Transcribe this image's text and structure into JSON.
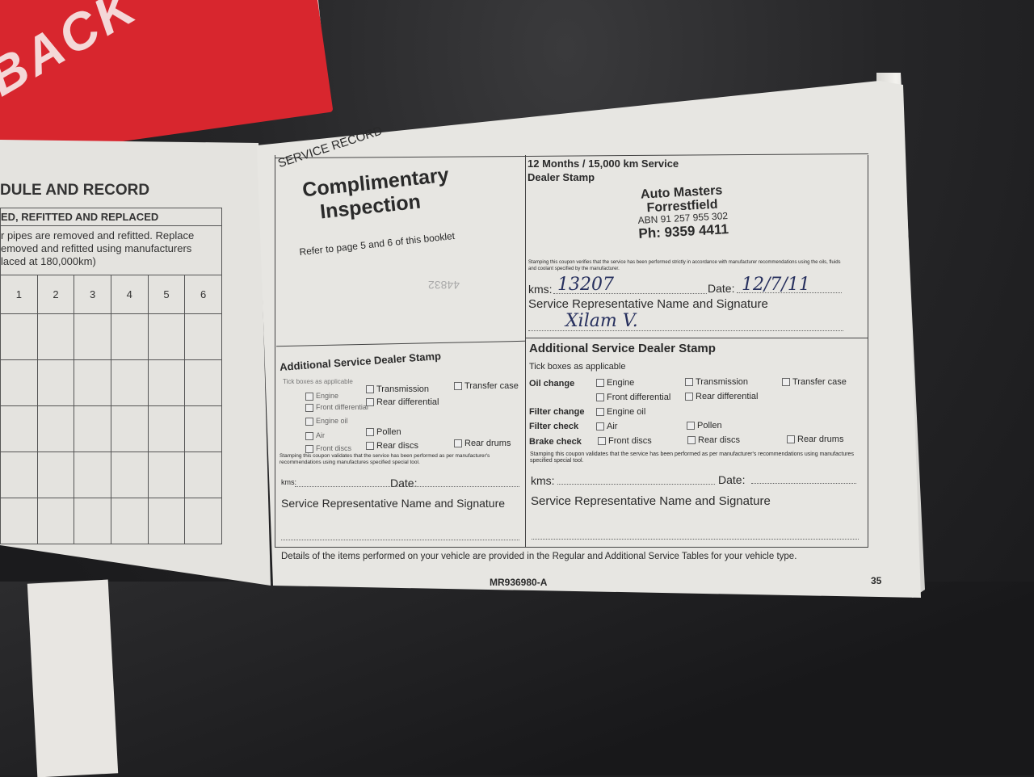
{
  "background_booklet": {
    "cover_text": "BACK"
  },
  "left_page": {
    "title": "DULE AND RECORD",
    "table_header": "ED, REFITTED AND REPLACED",
    "note_lines": [
      "r pipes are removed and refitted. Replace",
      "emoved and refitted using manufacturers",
      "laced at 180,000km)"
    ],
    "columns": [
      "1",
      "2",
      "3",
      "4",
      "5",
      "6"
    ]
  },
  "right_page": {
    "section_label": "SERVICE RECORD",
    "title_line1": "Complimentary",
    "title_line2": "Inspection",
    "refer_text": "Refer to page 5 and 6 of this booklet",
    "faint_handwriting": "44832",
    "service_box": {
      "heading": "12 Months / 15,000 km Service",
      "subheading": "Dealer Stamp",
      "stamp": {
        "name": "Auto Masters",
        "location": "Forrestfield",
        "abn": "ABN 91 257 955 302",
        "phone": "Ph:  9359 4411"
      },
      "verify_note": "Stamping this coupon verifies that the service has been performed strictly in accordance with manufacturer recommendations using the oils, fluids and coolant specified by the manufacturer.",
      "kms_label": "kms:",
      "kms_value": "13207",
      "date_label": "Date:",
      "date_value": "12/7/11",
      "signature_label": "Service Representative Name and Signature",
      "signature_value": "Xilam V."
    },
    "additional_stamp": {
      "heading": "Additional Service Dealer Stamp",
      "tick_note": "Tick boxes as applicable",
      "rows": [
        {
          "label": "Oil change",
          "items": [
            "Engine",
            "Transmission",
            "Transfer case"
          ]
        },
        {
          "label": "",
          "items": [
            "Front differential",
            "Rear differential"
          ]
        },
        {
          "label": "Filter change",
          "items": [
            "Engine oil"
          ]
        },
        {
          "label": "Filter check",
          "items": [
            "Air",
            "Pollen"
          ]
        },
        {
          "label": "Brake check",
          "items": [
            "Front discs",
            "Rear discs",
            "Rear drums"
          ]
        }
      ],
      "validate_note": "Stamping this coupon validates that the service has been performed as per manufacturer's recommendations using manufactures specified special tool.",
      "kms_label": "kms:",
      "date_label": "Date:",
      "signature_label": "Service Representative Name and Signature"
    },
    "footer_note": "Details of the items performed on your vehicle are provided in the Regular and Additional Service Tables for your vehicle type.",
    "part_number": "MR936980-A",
    "page_number": "35"
  }
}
